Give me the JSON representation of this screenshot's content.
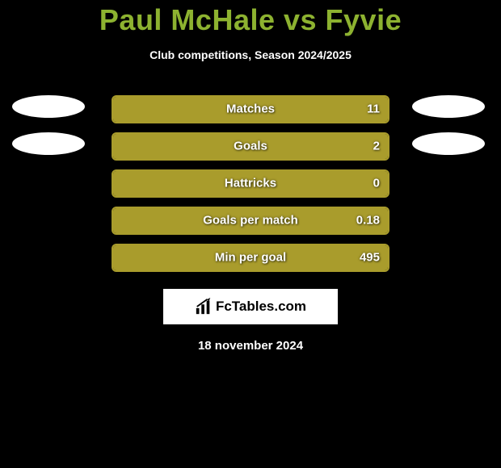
{
  "title": "Paul McHale vs Fyvie",
  "subtitle": "Club competitions, Season 2024/2025",
  "date": "18 november 2024",
  "colors": {
    "background": "#000000",
    "accent": "#8db230",
    "bar_fill": "#a99c2c",
    "bar_border": "#a99c2c",
    "text": "#ffffff",
    "logo_bg": "#ffffff",
    "logo_text": "#000000"
  },
  "logo_text": "FcTables.com",
  "stats": [
    {
      "label": "Matches",
      "value": "11",
      "fill_pct": 100,
      "show_avatars": true
    },
    {
      "label": "Goals",
      "value": "2",
      "fill_pct": 100,
      "show_avatars": true
    },
    {
      "label": "Hattricks",
      "value": "0",
      "fill_pct": 100,
      "show_avatars": false
    },
    {
      "label": "Goals per match",
      "value": "0.18",
      "fill_pct": 100,
      "show_avatars": false
    },
    {
      "label": "Min per goal",
      "value": "495",
      "fill_pct": 100,
      "show_avatars": false
    }
  ]
}
